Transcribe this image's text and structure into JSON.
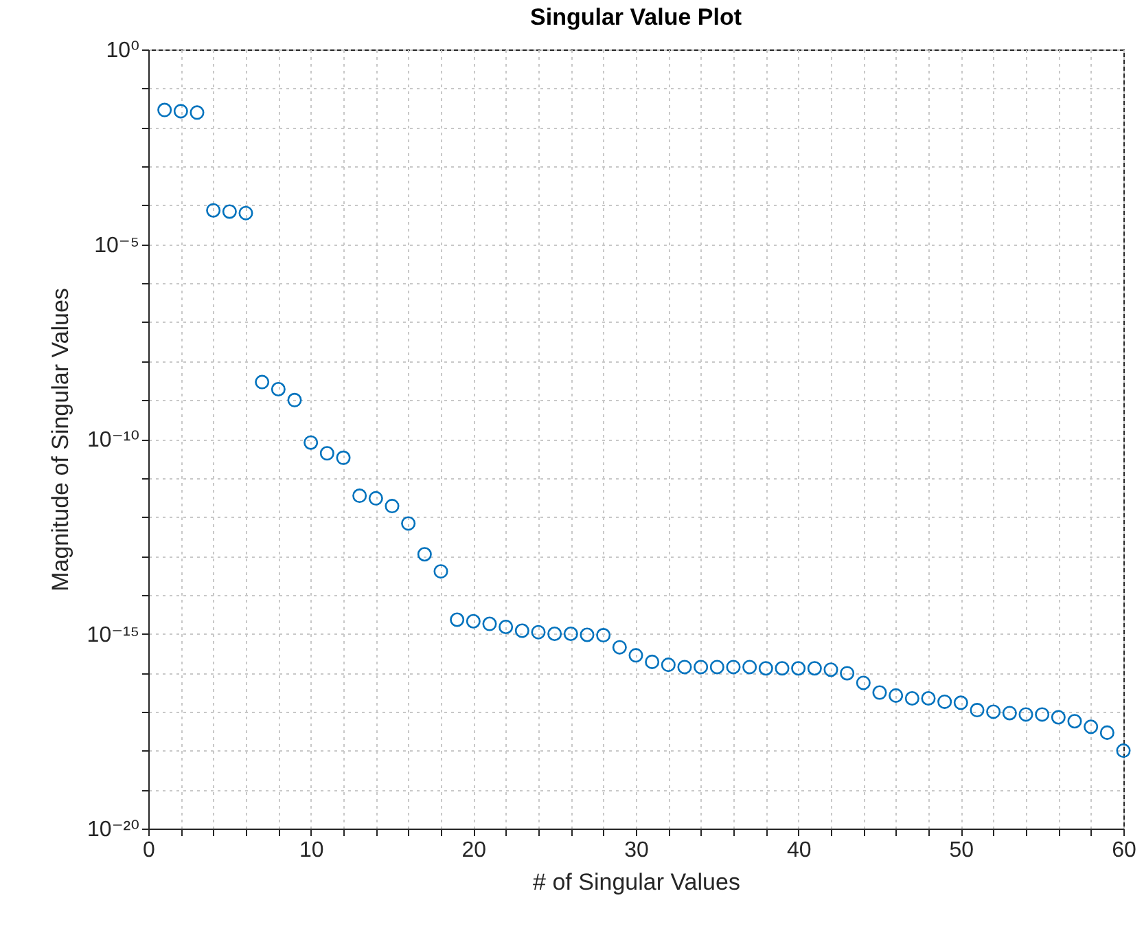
{
  "chart_data": {
    "type": "scatter",
    "title": "Singular Value Plot",
    "xlabel": "# of Singular Values",
    "ylabel": "Magnitude of Singular Values",
    "log": "y",
    "grid": true,
    "marker": "circle",
    "xlim": [
      0,
      60
    ],
    "xticks": [
      0,
      {
        "value": 2,
        "label": null
      },
      {
        "value": 4,
        "label": null
      },
      {
        "value": 6,
        "label": null
      },
      {
        "value": 8,
        "label": null
      },
      10,
      {
        "value": 12,
        "label": null
      },
      {
        "value": 14,
        "label": null
      },
      {
        "value": 16,
        "label": null
      },
      {
        "value": 18,
        "label": null
      },
      20,
      {
        "value": 22,
        "label": null
      },
      {
        "value": 24,
        "label": null
      },
      {
        "value": 26,
        "label": null
      },
      {
        "value": 28,
        "label": null
      },
      30,
      {
        "value": 32,
        "label": null
      },
      {
        "value": 34,
        "label": null
      },
      {
        "value": 36,
        "label": null
      },
      {
        "value": 38,
        "label": null
      },
      40,
      {
        "value": 42,
        "label": null
      },
      {
        "value": 44,
        "label": null
      },
      {
        "value": 46,
        "label": null
      },
      {
        "value": 48,
        "label": null
      },
      50,
      {
        "value": 52,
        "label": null
      },
      {
        "value": 54,
        "label": null
      },
      {
        "value": 56,
        "label": null
      },
      {
        "value": 58,
        "label": null
      },
      60
    ],
    "ylim": [
      1e-20,
      1
    ],
    "yticks": [
      {
        "value": 1e-20,
        "label": "10⁻²⁰"
      },
      {
        "value": 1e-19,
        "label": null
      },
      {
        "value": 1e-18,
        "label": null
      },
      {
        "value": 1e-17,
        "label": null
      },
      {
        "value": 1e-16,
        "label": null
      },
      {
        "value": 1e-15,
        "label": "10⁻¹⁵"
      },
      {
        "value": 1e-14,
        "label": null
      },
      {
        "value": 1e-13,
        "label": null
      },
      {
        "value": 1e-12,
        "label": null
      },
      {
        "value": 1e-11,
        "label": null
      },
      {
        "value": 1e-10,
        "label": "10⁻¹⁰"
      },
      {
        "value": 1e-09,
        "label": null
      },
      {
        "value": 1e-08,
        "label": null
      },
      {
        "value": 1e-07,
        "label": null
      },
      {
        "value": 1e-06,
        "label": null
      },
      {
        "value": 1e-05,
        "label": "10⁻⁵"
      },
      {
        "value": 0.0001,
        "label": null
      },
      {
        "value": 0.001,
        "label": null
      },
      {
        "value": 0.01,
        "label": null
      },
      {
        "value": 0.1,
        "label": null
      },
      {
        "value": 1,
        "label": "10⁰"
      }
    ],
    "x": [
      1,
      2,
      3,
      4,
      5,
      6,
      7,
      8,
      9,
      10,
      11,
      12,
      13,
      14,
      15,
      16,
      17,
      18,
      19,
      20,
      21,
      22,
      23,
      24,
      25,
      26,
      27,
      28,
      29,
      30,
      31,
      32,
      33,
      34,
      35,
      36,
      37,
      38,
      39,
      40,
      41,
      42,
      43,
      44,
      45,
      46,
      47,
      48,
      49,
      50,
      51,
      52,
      53,
      54,
      55,
      56,
      57,
      58,
      59,
      60
    ],
    "series": [
      {
        "color": "#0072bd",
        "values": [
          0.028,
          0.026,
          0.024,
          7.4e-05,
          6.9e-05,
          6.3e-05,
          2.9e-09,
          1.9e-09,
          1e-09,
          8.1e-11,
          4.3e-11,
          3.3e-11,
          3.5e-12,
          3e-12,
          1.9e-12,
          6.8e-13,
          1.1e-13,
          4e-14,
          2.3e-15,
          2.1e-15,
          1.8e-15,
          1.5e-15,
          1.2e-15,
          1.1e-15,
          1e-15,
          1e-15,
          9.4e-16,
          9.2e-16,
          4.5e-16,
          2.8e-16,
          1.9e-16,
          1.6e-16,
          1.4e-16,
          1.4e-16,
          1.4e-16,
          1.4e-16,
          1.4e-16,
          1.3e-16,
          1.3e-16,
          1.3e-16,
          1.3e-16,
          1.2e-16,
          9.7e-17,
          5.5e-17,
          3.1e-17,
          2.6e-17,
          2.2e-17,
          2.2e-17,
          1.8e-17,
          1.7e-17,
          1.1e-17,
          1e-17,
          9.2e-18,
          8.5e-18,
          8.5e-18,
          7.2e-18,
          5.7e-18,
          4.1e-18,
          2.9e-18,
          1e-18
        ]
      }
    ]
  }
}
